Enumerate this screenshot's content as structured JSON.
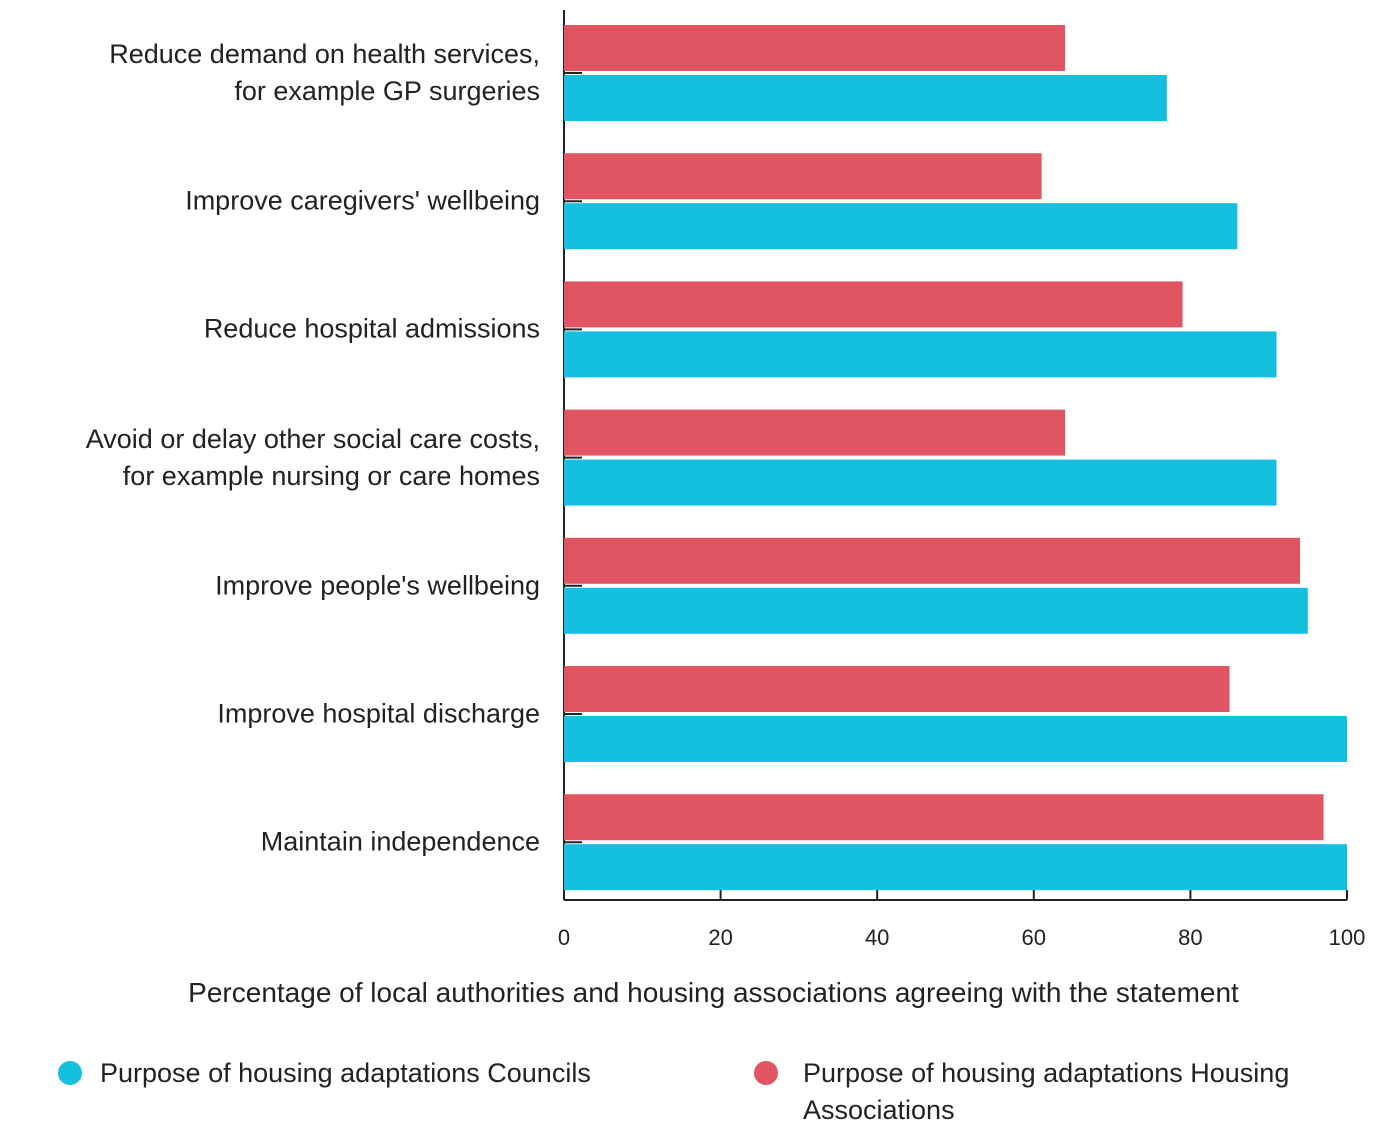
{
  "chart_data": {
    "type": "bar",
    "orientation": "horizontal",
    "x_label": "Percentage of local authorities and housing associations agreeing with the statement",
    "categories": [
      "Reduce demand on health services,\nfor example GP surgeries",
      "Improve caregivers' wellbeing",
      "Reduce hospital admissions",
      "Avoid or delay other social care costs,\nfor example nursing or care homes",
      "Improve people's wellbeing",
      "Improve hospital discharge",
      "Maintain independence"
    ],
    "series": [
      {
        "name": "Purpose of housing adaptations Councils",
        "color": "#14c0de",
        "values": [
          77,
          86,
          91,
          91,
          95,
          100,
          100
        ]
      },
      {
        "name": "Purpose of housing adaptations Housing Associations",
        "color": "#e05561",
        "values": [
          64,
          61,
          79,
          64,
          94,
          85,
          97
        ]
      }
    ],
    "xlim": [
      0,
      100
    ],
    "xticks": [
      0,
      20,
      40,
      60,
      80,
      100
    ]
  }
}
